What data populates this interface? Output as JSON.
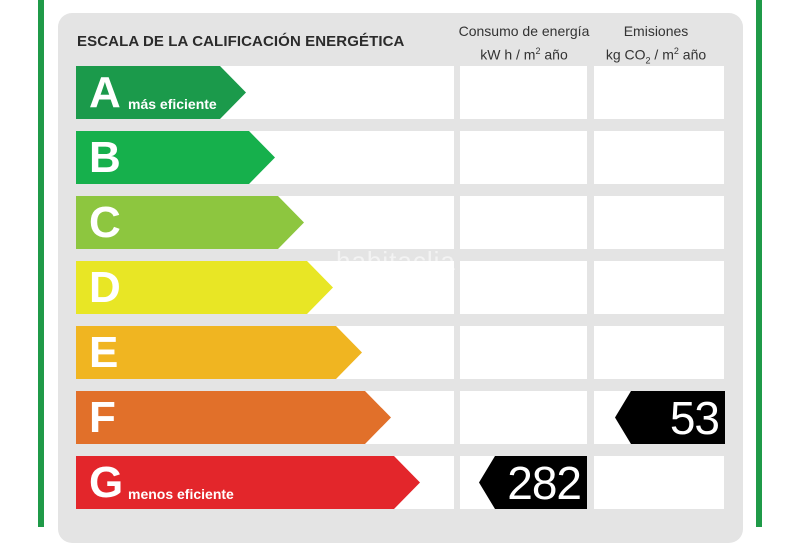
{
  "title": "ESCALA DE LA CALIFICACIÓN ENERGÉTICA",
  "columns": {
    "consumo": {
      "line1": "Consumo de energía",
      "line2a": "kW h  / m",
      "sup": "2",
      "line2b": " año"
    },
    "emisiones": {
      "line1": "Emisiones",
      "line2a": "kg CO",
      "sub": "2",
      "line2b": "  / m",
      "sup": "2",
      "line2c": " año"
    }
  },
  "rows": [
    {
      "letter": "A",
      "note": "más eficiente",
      "color": "#1b9a4b"
    },
    {
      "letter": "B",
      "note": "",
      "color": "#16b04c"
    },
    {
      "letter": "C",
      "note": "",
      "color": "#8dc63f"
    },
    {
      "letter": "D",
      "note": "",
      "color": "#e8e625"
    },
    {
      "letter": "E",
      "note": "",
      "color": "#f0b521"
    },
    {
      "letter": "F",
      "note": "",
      "color": "#e1702a"
    },
    {
      "letter": "G",
      "note": "menos eficiente",
      "color": "#e3262b"
    }
  ],
  "consumption_rating": {
    "letter": "G",
    "value": "282"
  },
  "emissions_rating": {
    "letter": "F",
    "value": "53"
  },
  "watermark": "habitaclia"
}
